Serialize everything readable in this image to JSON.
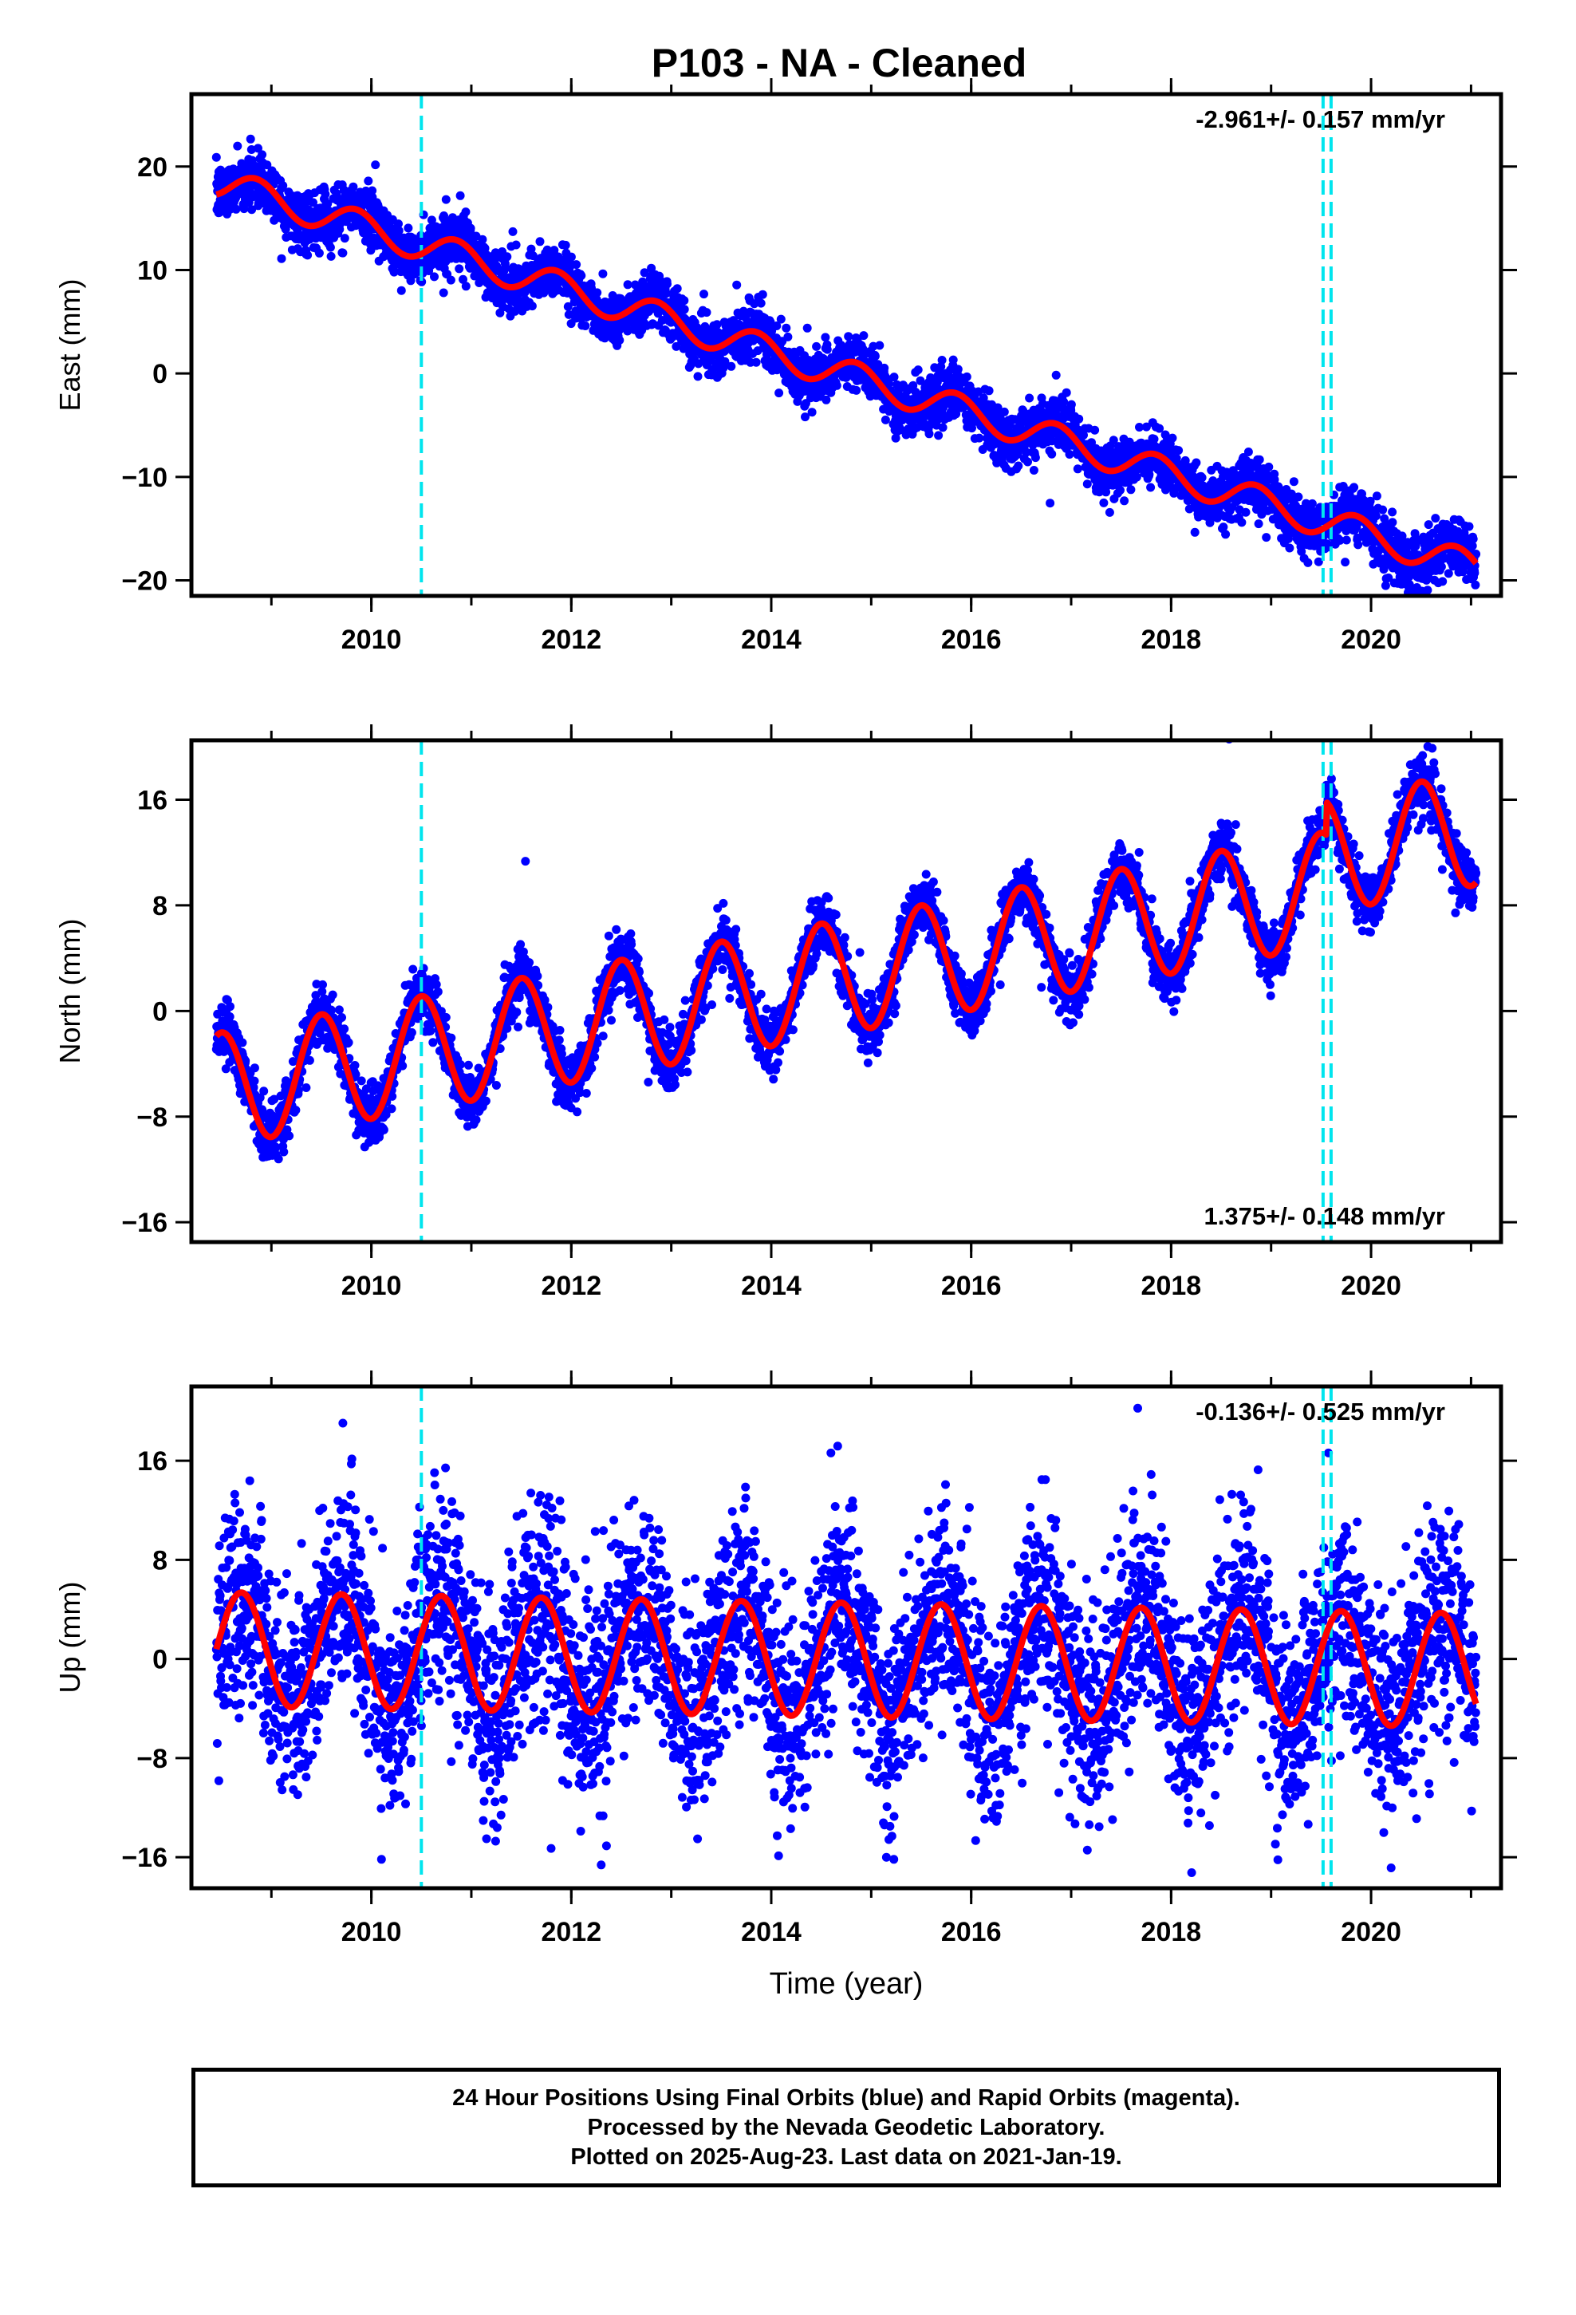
{
  "title": "P103  - NA - Cleaned",
  "colors": {
    "data_points": "#0000ff",
    "model_fit": "#ff0000",
    "event_lines": "#00e5ee",
    "frame": "#000000"
  },
  "icons": [],
  "caption": {
    "lines": [
      "24 Hour Positions Using Final Orbits (blue) and Rapid Orbits (magenta).",
      "Processed by the Nevada Geodetic Laboratory.",
      "Plotted on 2025-Aug-23. Last data on 2021-Jan-19."
    ]
  },
  "chart_data": [
    {
      "type": "scatter",
      "panel": "east",
      "ylabel": "East (mm)",
      "xlabel": "",
      "rate_text": "-2.961+/- 0.157 mm/yr",
      "rate_position": "top-right",
      "xlim": [
        2008.2,
        2021.3
      ],
      "ylim": [
        -21.5,
        27
      ],
      "x_ticks": [
        2010,
        2012,
        2014,
        2016,
        2018,
        2020
      ],
      "y_ticks": [
        -20,
        -10,
        0,
        10,
        20
      ],
      "x_range_data": [
        2008.45,
        2021.05
      ],
      "event_lines_x": [
        2010.5,
        2019.52,
        2019.6
      ],
      "series": [
        {
          "role": "model",
          "trend_mm_per_yr": -2.961,
          "offset_at_2008_45": 18.5,
          "annual_amplitude_mm": 1.5,
          "annual_phase_year": 2008.85,
          "noise_sd_mm": 1.3,
          "steps": []
        }
      ]
    },
    {
      "type": "scatter",
      "panel": "north",
      "ylabel": "North (mm)",
      "xlabel": "",
      "rate_text": "1.375+/- 0.148 mm/yr",
      "rate_position": "bottom-right",
      "xlim": [
        2008.2,
        2021.3
      ],
      "ylim": [
        -17.5,
        20.5
      ],
      "x_ticks": [
        2010,
        2012,
        2014,
        2016,
        2018,
        2020
      ],
      "y_ticks": [
        -16,
        -8,
        0,
        8,
        16
      ],
      "x_range_data": [
        2008.45,
        2021.05
      ],
      "event_lines_x": [
        2010.5,
        2019.52,
        2019.6
      ],
      "series": [
        {
          "role": "model",
          "trend_mm_per_yr": 1.375,
          "offset_at_2008_45": -6.0,
          "annual_amplitude_mm": 4.3,
          "annual_phase_year": 2008.5,
          "noise_sd_mm": 1.1,
          "steps": [
            {
              "x": 2019.55,
              "dy": 2.5
            }
          ]
        }
      ]
    },
    {
      "type": "scatter",
      "panel": "up",
      "ylabel": "Up (mm)",
      "xlabel": "Time (year)",
      "rate_text": "-0.136+/- 0.525 mm/yr",
      "rate_position": "top-right",
      "xlim": [
        2008.2,
        2021.3
      ],
      "ylim": [
        -18.5,
        22
      ],
      "x_ticks": [
        2010,
        2012,
        2014,
        2016,
        2018,
        2020
      ],
      "y_ticks": [
        -16,
        -8,
        0,
        8,
        16
      ],
      "x_range_data": [
        2008.45,
        2021.05
      ],
      "event_lines_x": [
        2010.5,
        2019.52,
        2019.6
      ],
      "series": [
        {
          "role": "model",
          "trend_mm_per_yr": -0.136,
          "offset_at_2008_45": 0.8,
          "annual_amplitude_mm": 4.6,
          "annual_phase_year": 2008.7,
          "noise_sd_mm": 4.2,
          "steps": []
        }
      ]
    }
  ]
}
